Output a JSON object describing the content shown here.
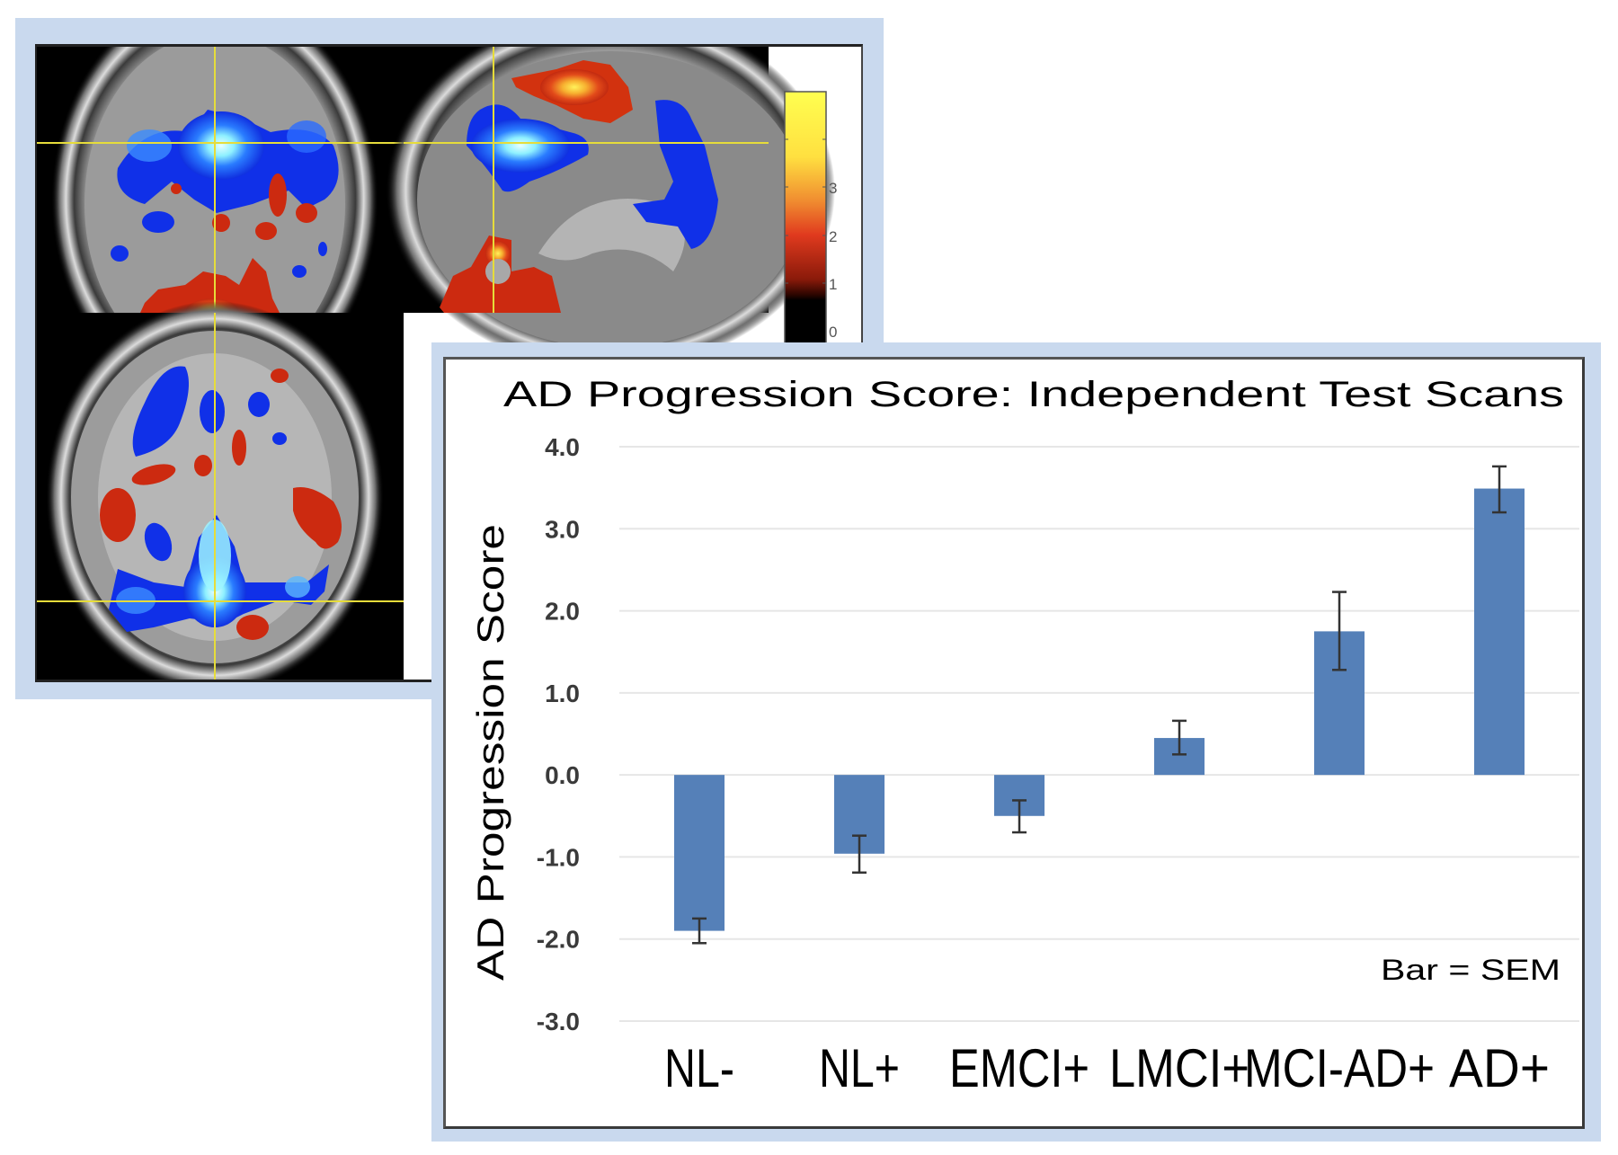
{
  "brain_figure": {
    "colorbar": {
      "tick_labels": [
        "3",
        "2",
        "1",
        "0"
      ],
      "colors": [
        "#ffff40",
        "#f0a030",
        "#e03a1e",
        "#5a0a05",
        "#000000"
      ]
    },
    "overlay_colors": {
      "negative": "#1a3cff",
      "negative_peak": "#c8ffff",
      "positive": "#cc2a10",
      "positive_peak": "#ffe84a",
      "crosshair": "#e6dc3a"
    }
  },
  "chart_data": {
    "type": "bar",
    "title": "AD Progression Score: Independent Test Scans",
    "xlabel": "",
    "ylabel": "AD Progression Score",
    "categories": [
      "NL-",
      "NL+",
      "EMCI+",
      "LMCI+",
      "MCI-AD+",
      "AD+"
    ],
    "values": [
      -1.9,
      -0.96,
      -0.5,
      0.45,
      1.75,
      3.49
    ],
    "error_low": [
      -2.05,
      -1.19,
      -0.7,
      0.25,
      1.28,
      3.2
    ],
    "error_high": [
      -1.75,
      -0.74,
      -0.31,
      0.66,
      2.23,
      3.76
    ],
    "ylim": [
      -3.0,
      4.0
    ],
    "yticks": [
      4.0,
      3.0,
      2.0,
      1.0,
      0.0,
      -1.0,
      -2.0,
      -3.0
    ],
    "ytick_labels": [
      "4.0",
      "3.0",
      "2.0",
      "1.0",
      "0.0",
      "-1.0",
      "-2.0",
      "-3.0"
    ],
    "grid": true,
    "annotation": "Bar = SEM",
    "annotation_position": "bottom-right",
    "bar_color": "#5580b8",
    "errorbar_color": "#333333",
    "grid_color": "#e6e6e6"
  }
}
